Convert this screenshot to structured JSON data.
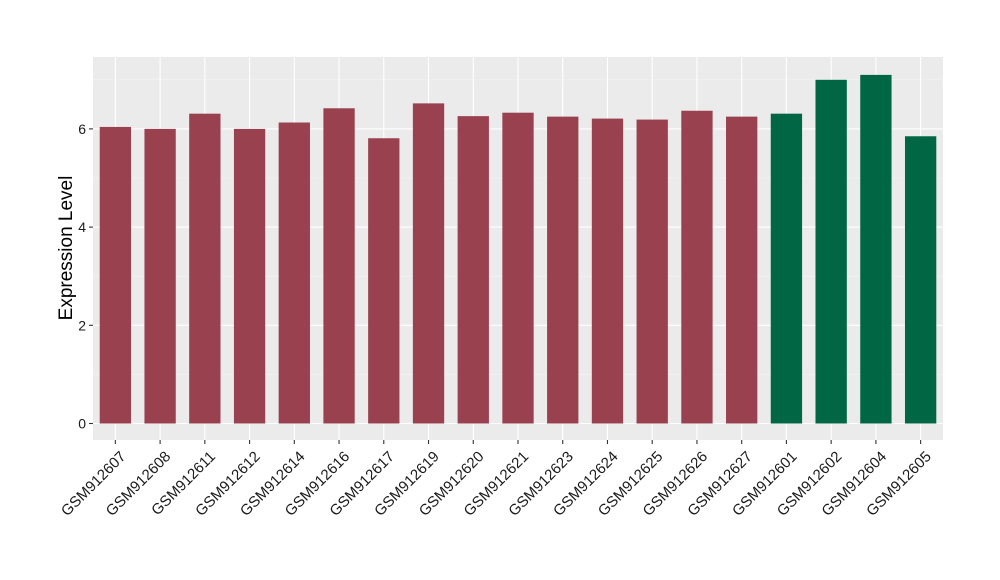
{
  "chart_data": {
    "type": "bar",
    "title": "",
    "xlabel": "",
    "ylabel": "Expression Level",
    "ylim": [
      0,
      7.2
    ],
    "yticks": [
      0,
      2,
      4,
      6
    ],
    "grid": true,
    "legend": "none",
    "categories": [
      "GSM912607",
      "GSM912608",
      "GSM912611",
      "GSM912612",
      "GSM912614",
      "GSM912616",
      "GSM912617",
      "GSM912619",
      "GSM912620",
      "GSM912621",
      "GSM912623",
      "GSM912624",
      "GSM912625",
      "GSM912626",
      "GSM912627",
      "GSM912601",
      "GSM912602",
      "GSM912604",
      "GSM912605"
    ],
    "values": [
      6.04,
      6.0,
      6.31,
      6.0,
      6.13,
      6.42,
      5.81,
      6.52,
      6.26,
      6.33,
      6.25,
      6.21,
      6.19,
      6.37,
      6.25,
      6.31,
      7.0,
      7.1,
      5.85
    ],
    "groups": [
      "a",
      "a",
      "a",
      "a",
      "a",
      "a",
      "a",
      "a",
      "a",
      "a",
      "a",
      "a",
      "a",
      "a",
      "a",
      "b",
      "b",
      "b",
      "b"
    ],
    "group_colors": {
      "a": "#9a4150",
      "b": "#006644"
    }
  }
}
